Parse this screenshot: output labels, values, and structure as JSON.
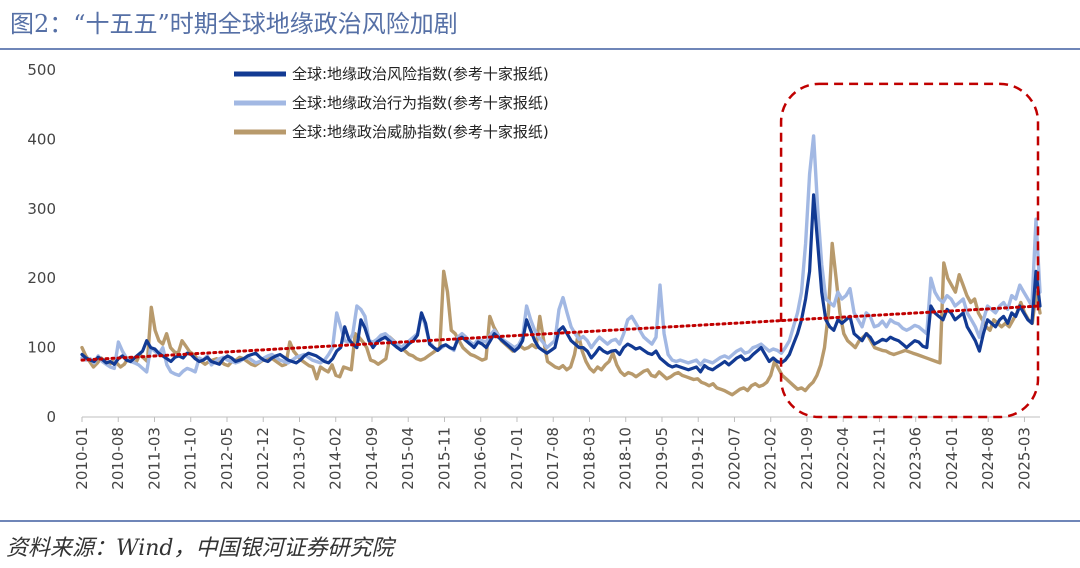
{
  "title": "图2：“十五五”时期全球地缘政治风险加剧",
  "source": "资料来源：Wind，中国银河证券研究院",
  "colors": {
    "risk": "#123a93",
    "acts": "#a2b8e3",
    "threats": "#b89a6c",
    "trend": "#c00000",
    "highlight": "#c00000",
    "rule": "#6f86b8"
  },
  "chart_data": {
    "type": "line",
    "x_start": "2010-01",
    "x_end": "2025-06",
    "x_ticks": [
      "2010-01",
      "2010-08",
      "2011-03",
      "2011-10",
      "2012-05",
      "2012-12",
      "2013-07",
      "2014-02",
      "2014-09",
      "2015-04",
      "2015-11",
      "2016-06",
      "2017-01",
      "2017-08",
      "2018-03",
      "2018-10",
      "2019-05",
      "2019-12",
      "2020-07",
      "2021-02",
      "2021-09",
      "2022-04",
      "2022-11",
      "2023-06",
      "2024-01",
      "2024-08",
      "2025-03"
    ],
    "ylim": [
      0,
      500
    ],
    "y_ticks": [
      0,
      100,
      200,
      300,
      400,
      500
    ],
    "legend_position": "top-left",
    "grid": false,
    "series": [
      {
        "name": "全球:地缘政治风险指数(参考十家报纸)",
        "color": "#123a93",
        "values": [
          90,
          85,
          82,
          80,
          86,
          83,
          78,
          80,
          76,
          84,
          88,
          82,
          80,
          85,
          90,
          95,
          110,
          100,
          98,
          92,
          88,
          84,
          80,
          86,
          88,
          85,
          92,
          90,
          84,
          80,
          82,
          86,
          80,
          78,
          76,
          84,
          88,
          85,
          80,
          82,
          84,
          88,
          90,
          92,
          86,
          82,
          80,
          85,
          88,
          90,
          86,
          82,
          80,
          78,
          82,
          88,
          92,
          90,
          88,
          84,
          80,
          78,
          84,
          95,
          100,
          130,
          112,
          105,
          100,
          140,
          128,
          110,
          100,
          108,
          112,
          115,
          110,
          105,
          100,
          96,
          100,
          106,
          110,
          118,
          150,
          135,
          105,
          100,
          96,
          102,
          104,
          100,
          98,
          112,
          115,
          110,
          105,
          100,
          108,
          105,
          100,
          110,
          120,
          115,
          110,
          105,
          100,
          95,
          100,
          110,
          140,
          125,
          110,
          100,
          96,
          92,
          96,
          100,
          125,
          130,
          120,
          110,
          105,
          100,
          100,
          95,
          85,
          92,
          100,
          95,
          92,
          95,
          96,
          90,
          100,
          105,
          102,
          98,
          100,
          96,
          92,
          90,
          95,
          85,
          80,
          75,
          72,
          74,
          72,
          70,
          68,
          70,
          72,
          65,
          74,
          70,
          68,
          72,
          76,
          80,
          75,
          80,
          85,
          88,
          82,
          84,
          90,
          95,
          100,
          90,
          80,
          85,
          80,
          78,
          82,
          90,
          105,
          120,
          140,
          170,
          210,
          320,
          250,
          180,
          140,
          130,
          125,
          140,
          135,
          140,
          145,
          120,
          115,
          110,
          120,
          115,
          105,
          108,
          112,
          110,
          115,
          112,
          110,
          105,
          100,
          105,
          110,
          108,
          102,
          100,
          160,
          150,
          145,
          140,
          155,
          150,
          140,
          145,
          150,
          130,
          120,
          110,
          95,
          120,
          140,
          135,
          130,
          140,
          145,
          135,
          150,
          145,
          160,
          150,
          140,
          135,
          210,
          160
        ]
      },
      {
        "name": "全球:地缘政治行为指数(参考十家报纸)",
        "color": "#a2b8e3",
        "values": [
          85,
          82,
          84,
          78,
          88,
          80,
          76,
          72,
          70,
          108,
          95,
          85,
          80,
          78,
          75,
          70,
          65,
          100,
          95,
          90,
          100,
          75,
          65,
          62,
          60,
          66,
          70,
          68,
          65,
          85,
          82,
          88,
          75,
          80,
          84,
          86,
          82,
          80,
          78,
          80,
          84,
          86,
          82,
          78,
          80,
          85,
          88,
          90,
          86,
          82,
          80,
          78,
          82,
          86,
          88,
          90,
          86,
          82,
          80,
          78,
          82,
          90,
          100,
          150,
          130,
          110,
          108,
          120,
          160,
          155,
          145,
          110,
          108,
          112,
          118,
          120,
          115,
          110,
          105,
          100,
          105,
          110,
          115,
          120,
          150,
          130,
          108,
          100,
          96,
          100,
          104,
          100,
          96,
          115,
          120,
          115,
          108,
          104,
          112,
          110,
          108,
          118,
          125,
          118,
          112,
          108,
          104,
          100,
          104,
          115,
          160,
          140,
          125,
          115,
          108,
          100,
          105,
          110,
          155,
          172,
          150,
          130,
          120,
          112,
          116,
          110,
          100,
          108,
          115,
          110,
          105,
          110,
          112,
          105,
          120,
          140,
          145,
          135,
          125,
          115,
          110,
          105,
          115,
          190,
          120,
          90,
          82,
          80,
          82,
          80,
          78,
          80,
          82,
          75,
          82,
          80,
          78,
          82,
          86,
          88,
          85,
          90,
          95,
          98,
          92,
          94,
          100,
          102,
          105,
          100,
          95,
          98,
          96,
          92,
          100,
          110,
          130,
          150,
          180,
          250,
          350,
          405,
          300,
          220,
          170,
          165,
          160,
          180,
          170,
          175,
          185,
          150,
          140,
          130,
          150,
          145,
          130,
          132,
          138,
          130,
          140,
          136,
          134,
          128,
          125,
          128,
          132,
          130,
          125,
          120,
          200,
          180,
          170,
          165,
          175,
          170,
          160,
          165,
          170,
          150,
          140,
          130,
          115,
          140,
          160,
          155,
          150,
          160,
          165,
          155,
          175,
          170,
          190,
          180,
          170,
          160,
          285,
          180
        ]
      },
      {
        "name": "全球:地缘政治威胁指数(参考十家报纸)",
        "color": "#b89a6c",
        "values": [
          100,
          88,
          80,
          72,
          78,
          85,
          80,
          75,
          80,
          78,
          72,
          76,
          85,
          80,
          78,
          90,
          85,
          80,
          158,
          125,
          110,
          105,
          120,
          100,
          94,
          92,
          110,
          102,
          94,
          90,
          84,
          80,
          76,
          80,
          82,
          84,
          80,
          76,
          74,
          80,
          82,
          86,
          84,
          80,
          76,
          74,
          78,
          82,
          84,
          86,
          82,
          78,
          74,
          76,
          108,
          95,
          88,
          82,
          78,
          74,
          72,
          55,
          72,
          68,
          65,
          75,
          60,
          58,
          72,
          70,
          68,
          120,
          115,
          108,
          100,
          82,
          80,
          76,
          80,
          84,
          115,
          110,
          105,
          100,
          95,
          90,
          88,
          84,
          82,
          84,
          88,
          92,
          96,
          100,
          210,
          180,
          125,
          120,
          110,
          100,
          95,
          90,
          88,
          85,
          82,
          84,
          145,
          130,
          120,
          110,
          105,
          100,
          95,
          100,
          102,
          98,
          100,
          104,
          100,
          145,
          110,
          80,
          76,
          72,
          70,
          74,
          68,
          72,
          90,
          120,
          95,
          80,
          70,
          65,
          72,
          68,
          75,
          80,
          92,
          75,
          65,
          60,
          64,
          62,
          58,
          62,
          66,
          68,
          60,
          58,
          65,
          60,
          55,
          58,
          62,
          64,
          60,
          58,
          56,
          54,
          55,
          50,
          48,
          45,
          48,
          42,
          40,
          38,
          35,
          32,
          36,
          40,
          42,
          38,
          45,
          48,
          44,
          46,
          50,
          60,
          80,
          70,
          60,
          55,
          50,
          45,
          40,
          42,
          38,
          45,
          50,
          60,
          75,
          100,
          150,
          250,
          200,
          150,
          120,
          110,
          105,
          100,
          110,
          115,
          120,
          110,
          100,
          98,
          96,
          95,
          92,
          90,
          92,
          94,
          96,
          94,
          92,
          90,
          88,
          86,
          84,
          82,
          80,
          78,
          222,
          200,
          190,
          180,
          205,
          190,
          175,
          165,
          170,
          150,
          140,
          130,
          125,
          140,
          135,
          130,
          135,
          130,
          140,
          150,
          165,
          150,
          140,
          135,
          180,
          150
        ]
      },
      {
        "name": "",
        "type": "trend",
        "color": "#c00000",
        "values": [
          82,
          160
        ]
      }
    ],
    "highlight_region": {
      "x_from": "2021-04",
      "x_to": "2025-06",
      "y_from": 0,
      "y_to": 480
    }
  }
}
